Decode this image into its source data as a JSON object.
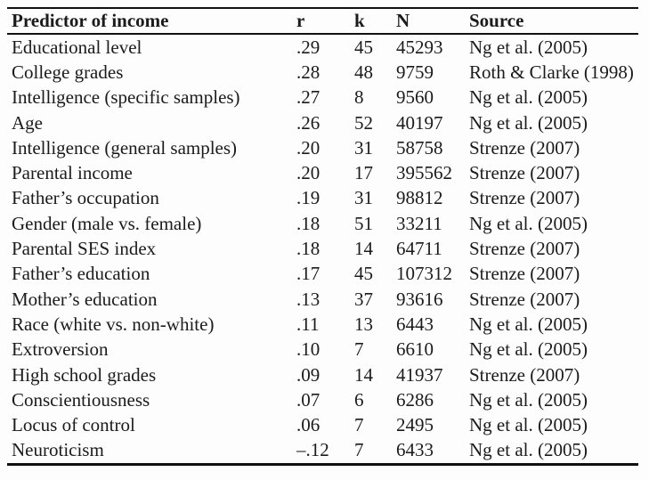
{
  "colors": {
    "background": "#fdfdfd",
    "text": "#1b1b1b",
    "rule": "#111111"
  },
  "table": {
    "headers": [
      "Predictor of income",
      "r",
      "k",
      "N",
      "Source"
    ],
    "rows": [
      [
        "Educational level",
        ".29",
        "45",
        "45293",
        "Ng et al. (2005)"
      ],
      [
        "College grades",
        ".28",
        "48",
        "9759",
        "Roth & Clarke (1998)"
      ],
      [
        "Intelligence (specific samples)",
        ".27",
        "8",
        "9560",
        "Ng et al. (2005)"
      ],
      [
        "Age",
        ".26",
        "52",
        "40197",
        "Ng et al. (2005)"
      ],
      [
        "Intelligence (general samples)",
        ".20",
        "31",
        "58758",
        "Strenze (2007)"
      ],
      [
        "Parental income",
        ".20",
        "17",
        "395562",
        "Strenze (2007)"
      ],
      [
        "Father’s occupation",
        ".19",
        "31",
        "98812",
        "Strenze (2007)"
      ],
      [
        "Gender (male vs. female)",
        ".18",
        "51",
        "33211",
        "Ng et al. (2005)"
      ],
      [
        "Parental SES index",
        ".18",
        "14",
        "64711",
        "Strenze (2007)"
      ],
      [
        "Father’s education",
        ".17",
        "45",
        "107312",
        "Strenze (2007)"
      ],
      [
        "Mother’s education",
        ".13",
        "37",
        "93616",
        "Strenze (2007)"
      ],
      [
        "Race (white vs. non-white)",
        ".11",
        "13",
        "6443",
        "Ng et al. (2005)"
      ],
      [
        "Extroversion",
        ".10",
        "7",
        "6610",
        "Ng et al. (2005)"
      ],
      [
        "High school grades",
        ".09",
        "14",
        "41937",
        "Strenze (2007)"
      ],
      [
        "Conscientiousness",
        ".07",
        "6",
        "6286",
        "Ng et al. (2005)"
      ],
      [
        "Locus of control",
        ".06",
        "7",
        "2495",
        "Ng et al. (2005)"
      ],
      [
        "Neuroticism",
        "–.12",
        "7",
        "6433",
        "Ng et al. (2005)"
      ]
    ]
  }
}
